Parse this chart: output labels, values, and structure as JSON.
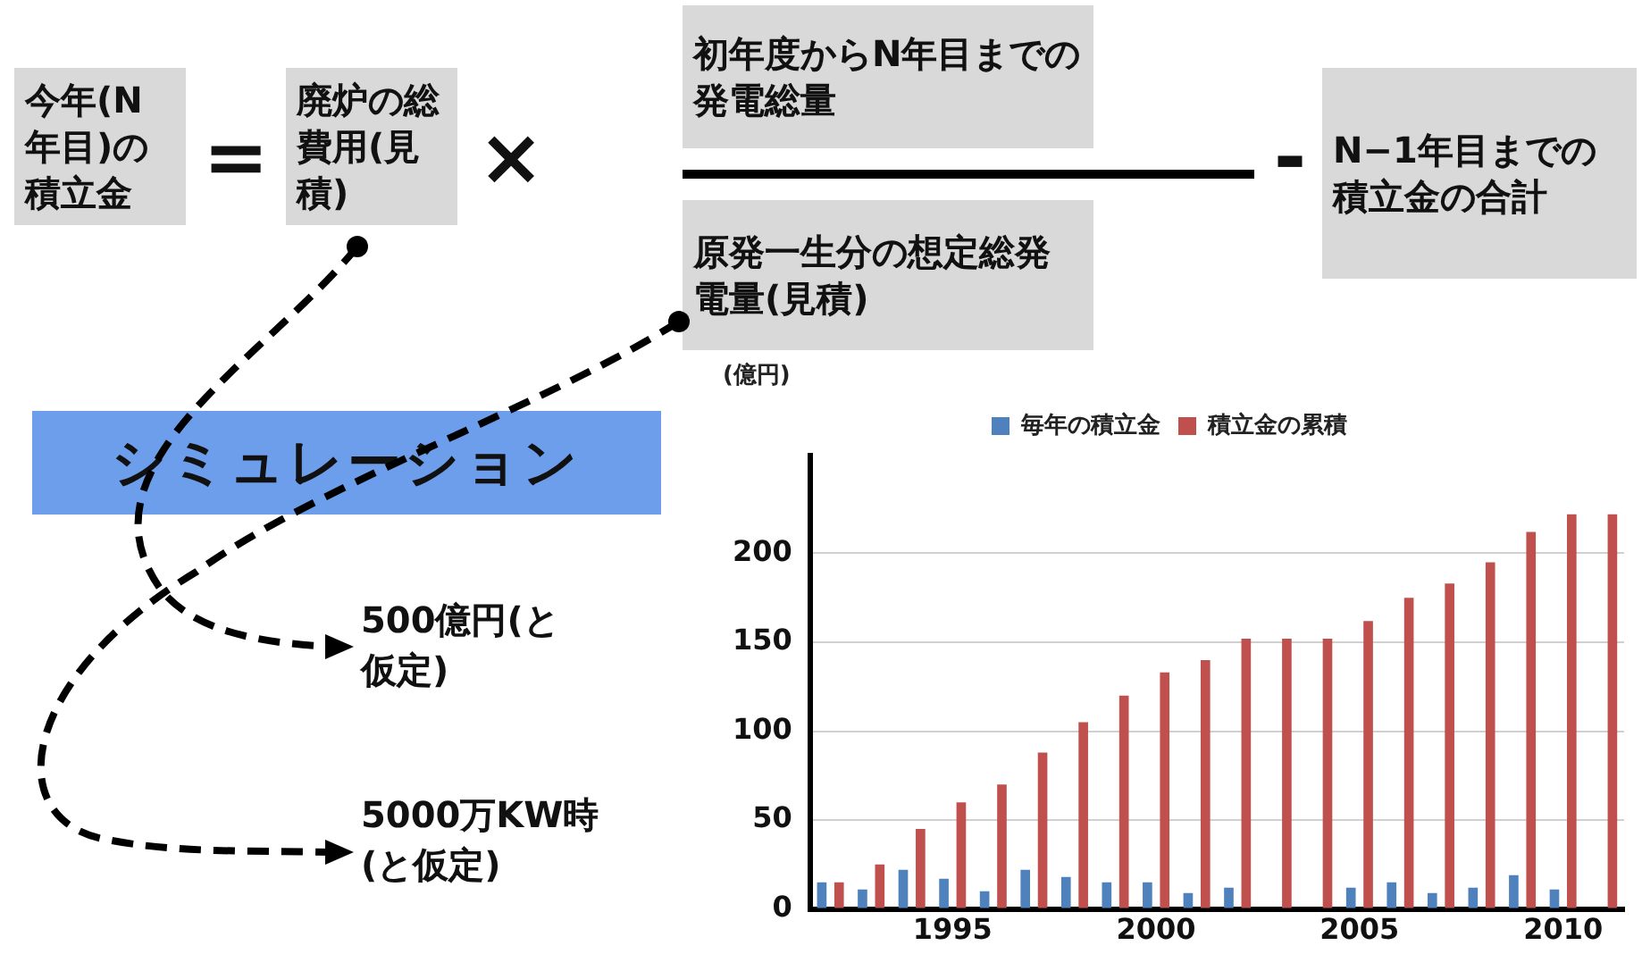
{
  "chart_data": {
    "type": "bar",
    "ylabel": "(億円)",
    "categories": [
      null,
      null,
      null,
      "1995",
      null,
      null,
      null,
      null,
      "2000",
      null,
      null,
      null,
      null,
      "2005",
      null,
      null,
      null,
      null,
      "2010",
      null
    ],
    "series": [
      {
        "name": "毎年の積立金",
        "color": "#4f81bd",
        "values": [
          15,
          11,
          22,
          17,
          10,
          22,
          18,
          15,
          15,
          9,
          12,
          null,
          null,
          12,
          15,
          9,
          12,
          19,
          11,
          null
        ]
      },
      {
        "name": "積立金の累積",
        "color": "#c0504d",
        "values": [
          15,
          25,
          45,
          60,
          70,
          88,
          105,
          120,
          133,
          140,
          152,
          152,
          152,
          162,
          175,
          183,
          195,
          212,
          222,
          222
        ]
      }
    ],
    "ylim": [
      0,
      255
    ],
    "yticks": [
      0,
      50,
      100,
      150,
      200
    ],
    "grid": "y",
    "legend": "top",
    "annotations": [
      "今年(N年目)の積立金",
      "=",
      "廃炉の総費用(見積)",
      "×",
      "初年度からN年目までの発電総量",
      "原発一生分の想定総発電量(見積)",
      "-",
      "N−1年目までの積立金の合計",
      "シミュレーション",
      "500億円(と仮定)",
      "5000万KW時(と仮定)"
    ]
  }
}
